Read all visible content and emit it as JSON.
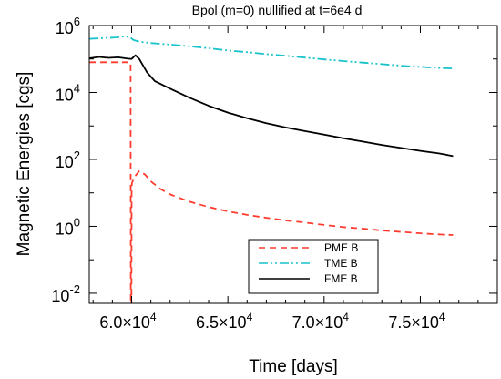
{
  "chart_data": {
    "type": "line",
    "title": "Bpol (m=0) nullified at t=6e4 d",
    "xlabel": "Time [days]",
    "ylabel": "Magnetic Energies [cgs]",
    "xlim": [
      57800,
      79000
    ],
    "ylim": [
      0.005,
      1000000
    ],
    "yscale": "log",
    "x_ticks": [
      {
        "value": 60000,
        "label": "6.0×10",
        "exp": "4"
      },
      {
        "value": 65000,
        "label": "6.5×10",
        "exp": "4"
      },
      {
        "value": 70000,
        "label": "7.0×10",
        "exp": "4"
      },
      {
        "value": 75000,
        "label": "7.5×10",
        "exp": "4"
      }
    ],
    "y_ticks": [
      {
        "value": 0.01,
        "label": "10",
        "exp": "-2"
      },
      {
        "value": 1,
        "label": "10",
        "exp": "0"
      },
      {
        "value": 100,
        "label": "10",
        "exp": "2"
      },
      {
        "value": 10000,
        "label": "10",
        "exp": "4"
      },
      {
        "value": 1000000,
        "label": "10",
        "exp": "6"
      }
    ],
    "legend_position": "bottom-right",
    "series": [
      {
        "name": "PME B",
        "color": "#ff3b2f",
        "dash": "dashed",
        "points": [
          [
            57800,
            80000
          ],
          [
            58500,
            80000
          ],
          [
            59200,
            80000
          ],
          [
            59950,
            80000
          ],
          [
            59960,
            0.003
          ],
          [
            59990,
            0.003
          ],
          [
            60000,
            15
          ],
          [
            60020,
            20
          ],
          [
            60150,
            30
          ],
          [
            60400,
            45
          ],
          [
            60700,
            35
          ],
          [
            61000,
            22
          ],
          [
            61500,
            13
          ],
          [
            62000,
            9
          ],
          [
            63000,
            5.5
          ],
          [
            64000,
            3.8
          ],
          [
            65000,
            2.8
          ],
          [
            66000,
            2.2
          ],
          [
            67000,
            1.8
          ],
          [
            68000,
            1.5
          ],
          [
            69000,
            1.3
          ],
          [
            70000,
            1.1
          ],
          [
            71000,
            0.95
          ],
          [
            72000,
            0.85
          ],
          [
            73000,
            0.75
          ],
          [
            74000,
            0.68
          ],
          [
            75000,
            0.62
          ],
          [
            76000,
            0.57
          ],
          [
            76700,
            0.55
          ]
        ]
      },
      {
        "name": "TME B",
        "color": "#19c3c9",
        "dash": "dash-dot-dot",
        "points": [
          [
            57800,
            400000
          ],
          [
            58500,
            420000
          ],
          [
            59200,
            440000
          ],
          [
            59600,
            470000
          ],
          [
            59900,
            450000
          ],
          [
            60100,
            370000
          ],
          [
            60400,
            330000
          ],
          [
            61000,
            300000
          ],
          [
            62000,
            270000
          ],
          [
            63000,
            240000
          ],
          [
            64000,
            210000
          ],
          [
            65000,
            180000
          ],
          [
            66000,
            160000
          ],
          [
            67000,
            140000
          ],
          [
            68000,
            125000
          ],
          [
            69000,
            110000
          ],
          [
            70000,
            97000
          ],
          [
            71000,
            87000
          ],
          [
            72000,
            78000
          ],
          [
            73000,
            70000
          ],
          [
            74000,
            63000
          ],
          [
            75000,
            58000
          ],
          [
            76000,
            54000
          ],
          [
            76700,
            52000
          ]
        ]
      },
      {
        "name": "FME B",
        "color": "#000000",
        "dash": "solid",
        "points": [
          [
            57800,
            105000
          ],
          [
            58300,
            115000
          ],
          [
            58800,
            108000
          ],
          [
            59300,
            112000
          ],
          [
            59800,
            102000
          ],
          [
            60000,
            100000
          ],
          [
            60200,
            130000
          ],
          [
            60400,
            100000
          ],
          [
            60800,
            40000
          ],
          [
            61200,
            22000
          ],
          [
            62000,
            13000
          ],
          [
            63000,
            7000
          ],
          [
            64000,
            4000
          ],
          [
            65000,
            2500
          ],
          [
            66000,
            1700
          ],
          [
            67000,
            1200
          ],
          [
            68000,
            900
          ],
          [
            69000,
            700
          ],
          [
            70000,
            550
          ],
          [
            71000,
            430
          ],
          [
            72000,
            340
          ],
          [
            73000,
            270
          ],
          [
            74000,
            220
          ],
          [
            75000,
            180
          ],
          [
            76000,
            150
          ],
          [
            76700,
            125
          ]
        ]
      }
    ]
  }
}
